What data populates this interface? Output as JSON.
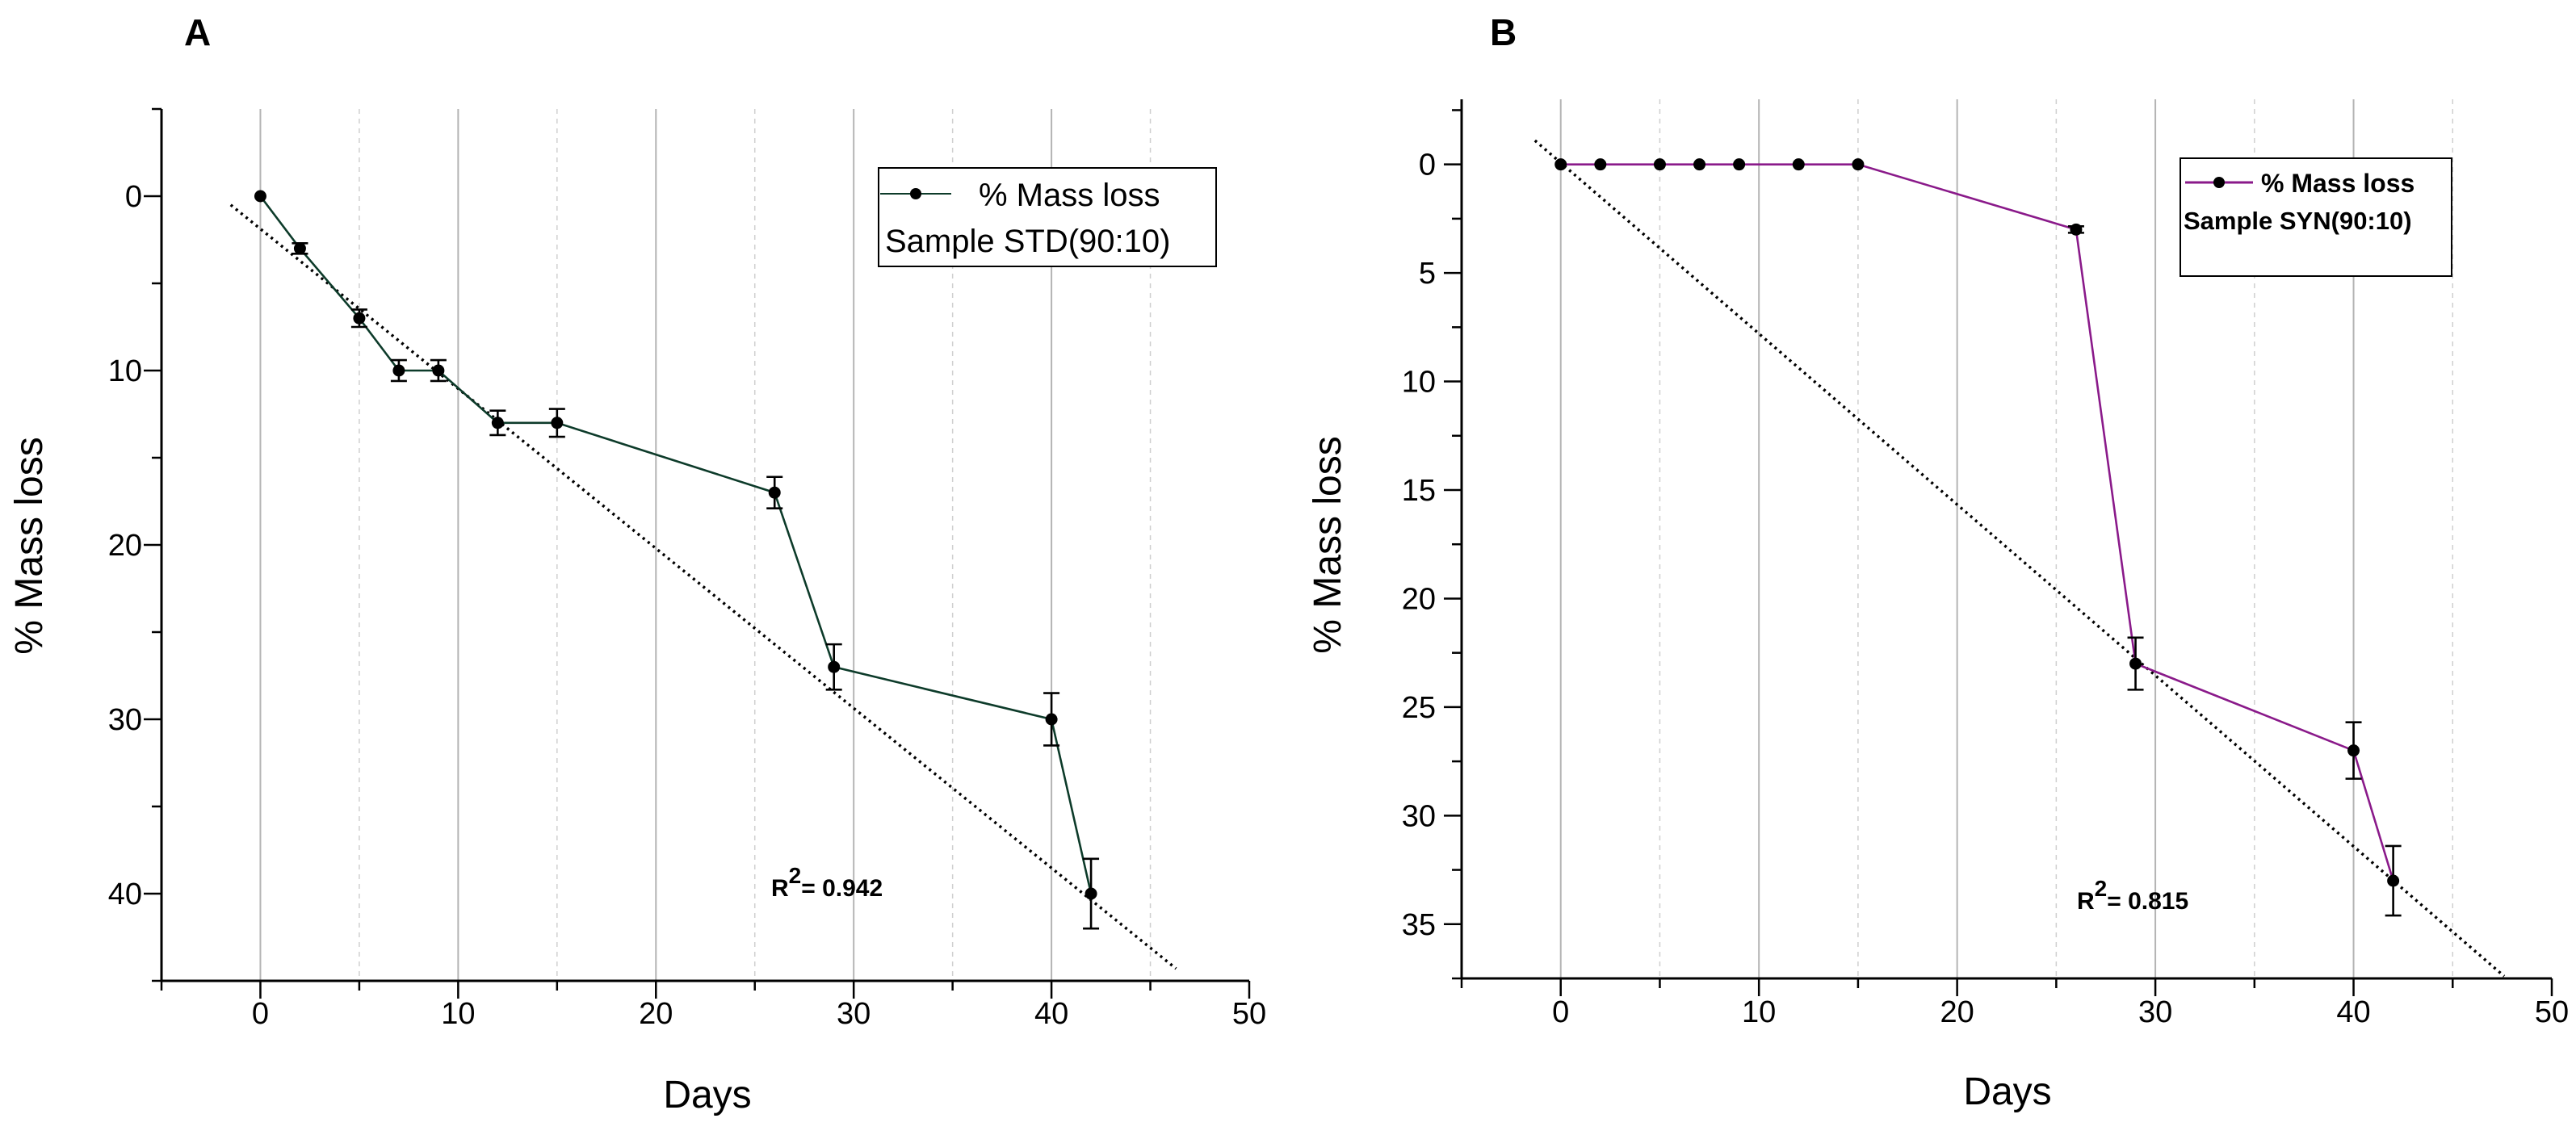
{
  "chart_data": [
    {
      "type": "line",
      "panel_label": "A",
      "xlabel": "Days",
      "ylabel": "% Mass loss",
      "xlim": [
        -5,
        50
      ],
      "ylim": [
        -5,
        45
      ],
      "y_inverted": true,
      "xticks": [
        0,
        10,
        20,
        30,
        40,
        50
      ],
      "yticks": [
        0,
        10,
        20,
        30,
        40
      ],
      "grid": "vertical",
      "series": [
        {
          "name": "% Mass loss",
          "color": "#0d3b2a",
          "x": [
            0,
            2,
            5,
            7,
            9,
            12,
            15,
            26,
            29,
            40,
            42
          ],
          "y": [
            0,
            3,
            7,
            10,
            10,
            13,
            13,
            17,
            27,
            30,
            40
          ],
          "err": [
            0,
            0.3,
            0.5,
            0.6,
            0.6,
            0.7,
            0.8,
            0.9,
            1.3,
            1.5,
            2.0
          ]
        }
      ],
      "trendline": {
        "x": [
          -1.5,
          46.3
        ],
        "y": [
          0.5,
          44.3
        ]
      },
      "legend": {
        "series_label": "% Mass loss",
        "sample_label": "Sample STD(90:10)",
        "position": "top-right"
      },
      "annotation": {
        "prefix": "R",
        "sup": "2",
        "value": "= 0.942"
      }
    },
    {
      "type": "line",
      "panel_label": "B",
      "xlabel": "Days",
      "ylabel": "% Mass loss",
      "xlim": [
        -5,
        50
      ],
      "ylim": [
        -3,
        37.5
      ],
      "y_inverted": true,
      "xticks": [
        0,
        10,
        20,
        30,
        40,
        50
      ],
      "yticks": [
        0,
        5,
        10,
        15,
        20,
        25,
        30,
        35
      ],
      "grid": "vertical",
      "series": [
        {
          "name": "% Mass loss",
          "color": "#8a1a8a",
          "x": [
            0,
            2,
            5,
            7,
            9,
            12,
            15,
            26,
            29,
            40,
            42
          ],
          "y": [
            0,
            0,
            0,
            0,
            0,
            0,
            0,
            3,
            23,
            27,
            33
          ],
          "err": [
            0,
            0,
            0,
            0,
            0,
            0,
            0,
            0.15,
            1.2,
            1.3,
            1.6
          ]
        }
      ],
      "trendline": {
        "x": [
          -1.3,
          47.6
        ],
        "y": [
          -1.1,
          37.4
        ]
      },
      "legend": {
        "series_label": "% Mass loss",
        "sample_label": "Sample SYN(90:10)",
        "position": "top-right"
      },
      "annotation": {
        "prefix": "R",
        "sup": "2",
        "value": "= 0.815"
      }
    }
  ]
}
